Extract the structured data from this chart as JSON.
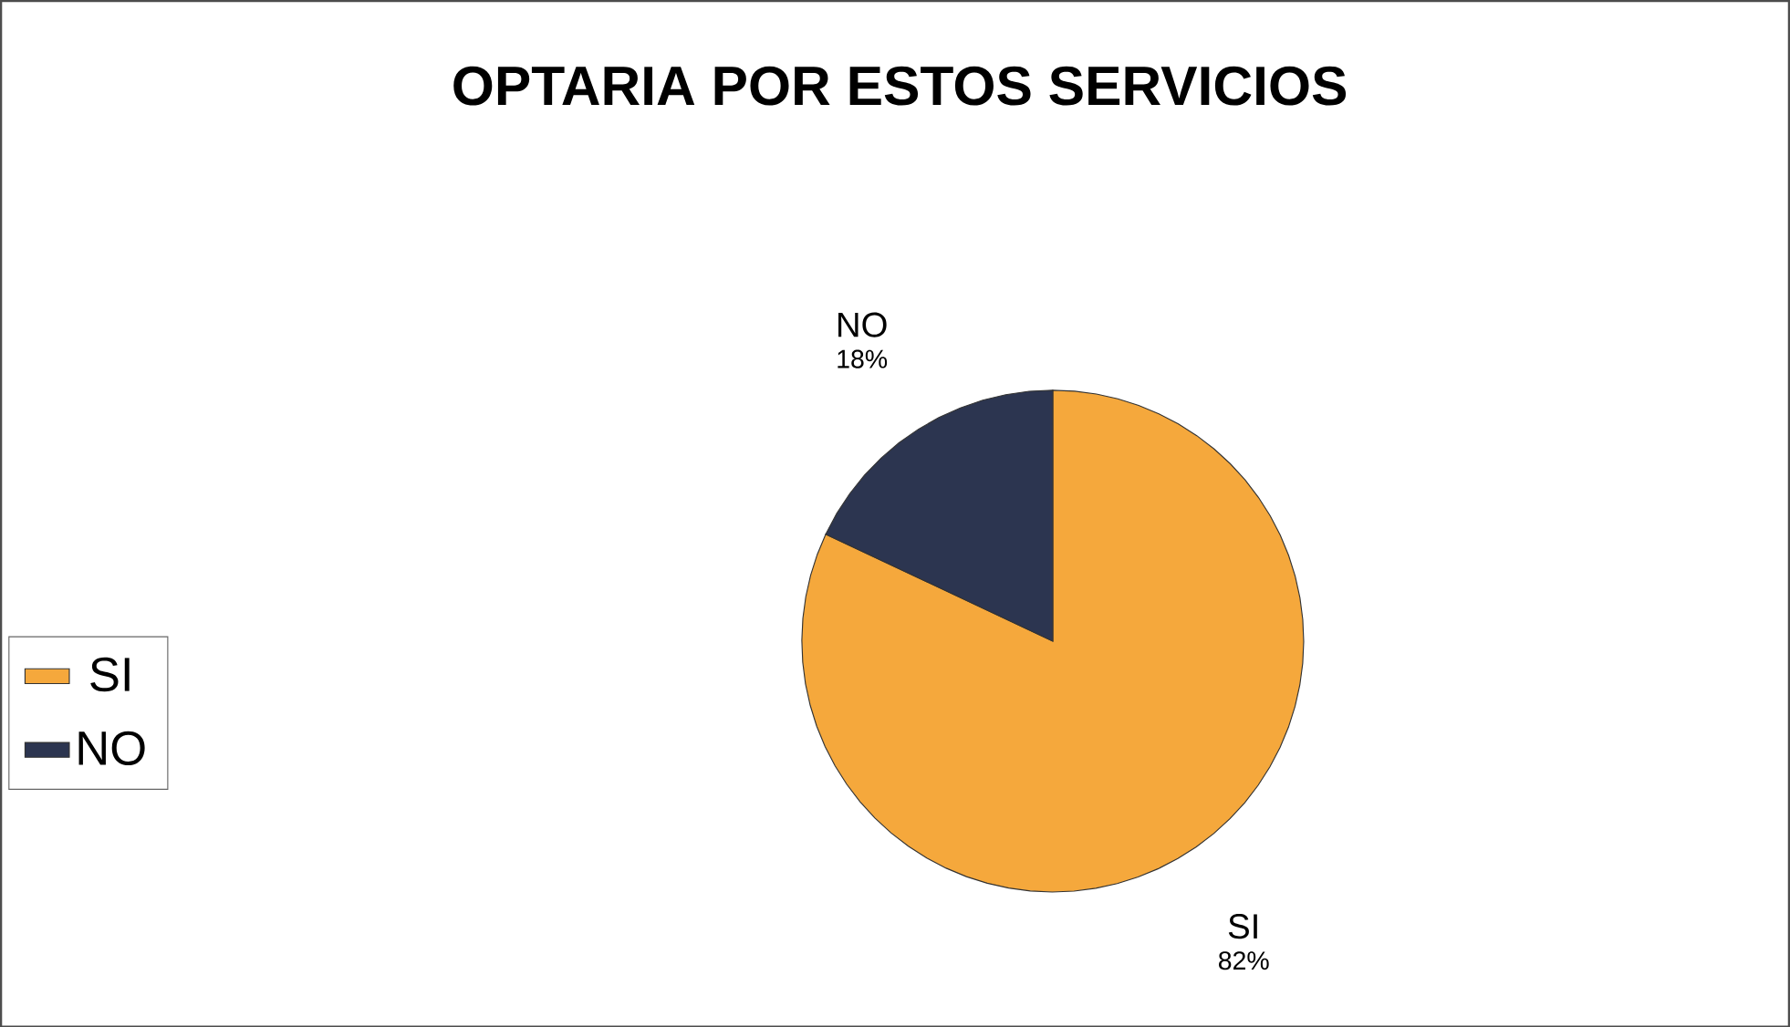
{
  "chart_data": {
    "type": "pie",
    "title": "OPTARIA POR ESTOS SERVICIOS",
    "categories": [
      "SI",
      "NO"
    ],
    "values": [
      82,
      18
    ],
    "colors": [
      "#f5a83c",
      "#2c3550"
    ],
    "value_labels": [
      "82%",
      "18%"
    ],
    "legend": "left"
  }
}
